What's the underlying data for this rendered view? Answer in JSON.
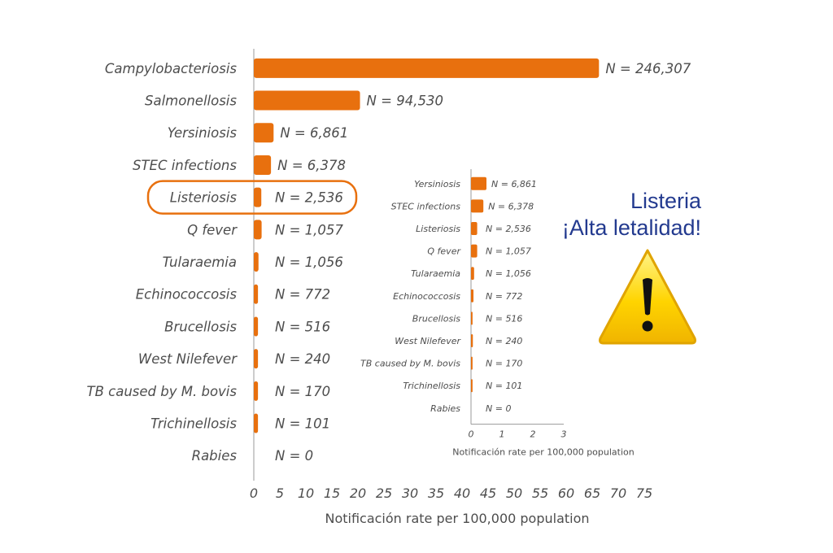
{
  "chart_data": [
    {
      "type": "bar",
      "orientation": "horizontal",
      "categories": [
        "Campylobacteriosis",
        "Salmonellosis",
        "Yersiniosis",
        "STEC infections",
        "Listeriosis",
        "Q fever",
        "Tularaemia",
        "Echinococcosis",
        "Brucellosis",
        "West Nilefever",
        "TB  caused by M. bovis",
        "Trichinellosis",
        "Rabies"
      ],
      "values": [
        66.3,
        20.4,
        3.8,
        3.3,
        1.44,
        1.5,
        0.9,
        0.8,
        0.8,
        0.8,
        0.8,
        0.8,
        0.0
      ],
      "annotations": [
        "N = 246,307",
        "N = 94,530",
        "N = 6,861",
        "N = 6,378",
        "N = 2,536",
        "N = 1,057",
        "N = 1,056",
        "N = 772",
        "N = 516",
        "N = 240",
        "N = 170",
        "N = 101",
        "N = 0"
      ],
      "xlabel": "Notificación rate per 100,000 population",
      "xlim": [
        0,
        75
      ],
      "xticks": [
        "0",
        "5",
        "10",
        "15",
        "20",
        "25",
        "30",
        "35",
        "40",
        "45",
        "50",
        "55",
        "60",
        "65",
        "70",
        "75"
      ],
      "highlighted_category": "Listeriosis",
      "color": "#e8700e"
    },
    {
      "type": "bar",
      "orientation": "horizontal",
      "categories": [
        "Yersiniosis",
        "STEC infections",
        "Listeriosis",
        "Q fever",
        "Tularaemia",
        "Echinococcosis",
        "Brucellosis",
        "West Nilefever",
        "TB  caused by M. bovis",
        "Trichinellosis",
        "Rabies"
      ],
      "values": [
        0.5,
        0.4,
        0.2,
        0.2,
        0.1,
        0.08,
        0.05,
        0.06,
        0.05,
        0.05,
        0.0
      ],
      "annotations": [
        "N = 6,861",
        "N = 6,378",
        "N = 2,536",
        "N = 1,057",
        "N = 1,056",
        "N = 772",
        "N = 516",
        "N = 240",
        "N = 170",
        "N = 101",
        "N = 0"
      ],
      "xlabel": "Notificación rate per 100,000 population",
      "xlim": [
        0,
        3
      ],
      "xticks": [
        "0",
        "1",
        "2",
        "3"
      ],
      "color": "#e8700e"
    }
  ],
  "callout": {
    "line1": "Listeria",
    "line2": "¡Alta letalidad!",
    "color": "#233a8f",
    "icon": "warning-triangle-icon"
  }
}
